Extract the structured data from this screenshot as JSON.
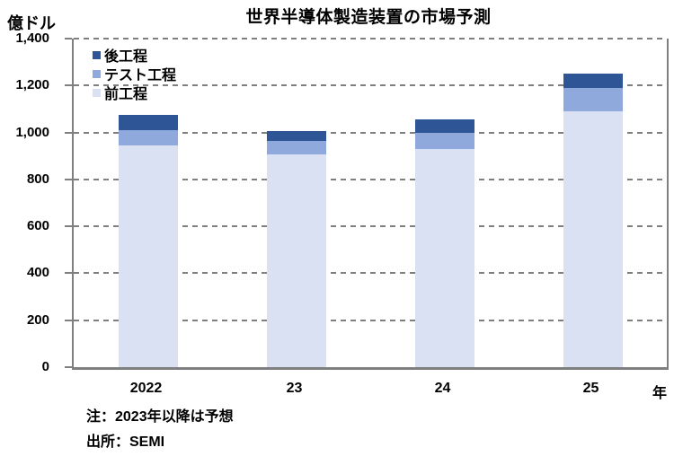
{
  "chart_data": {
    "type": "bar",
    "stacked": true,
    "title": "世界半導体製造装置の市場予測",
    "unit_label": "億ドル",
    "x_axis_suffix": "年",
    "categories": [
      "2022",
      "23",
      "24",
      "25"
    ],
    "series": [
      {
        "name": "前工程",
        "color": "#D9E1F3",
        "values": [
          945,
          905,
          930,
          1090
        ]
      },
      {
        "name": "テスト工程",
        "color": "#8FA9DC",
        "values": [
          65,
          60,
          70,
          100
        ]
      },
      {
        "name": "後工程",
        "color": "#2E5596",
        "values": [
          65,
          40,
          55,
          60
        ]
      }
    ],
    "totals": [
      1075,
      1005,
      1055,
      1250
    ],
    "ylim": [
      0,
      1400
    ],
    "ytick_step": 200,
    "ytick_labels": [
      "0",
      "200",
      "400",
      "600",
      "800",
      "1,000",
      "1,200",
      "1,400"
    ],
    "grid": "horizontal-dashed",
    "grid_color": "#7f7f7f",
    "axis_color": "#7f7f7f",
    "legend_position": "top-left-inside",
    "legend_order": [
      "後工程",
      "テスト工程",
      "前工程"
    ],
    "notes": [
      "注：2023年以降は予想",
      "出所：SEMI"
    ]
  }
}
